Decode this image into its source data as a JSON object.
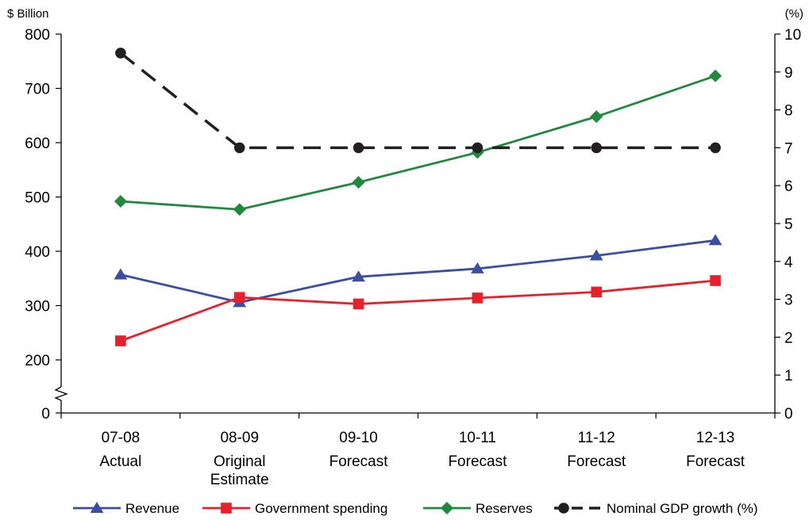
{
  "chart_data": {
    "type": "line",
    "categories": [
      [
        "07-08",
        "Actual"
      ],
      [
        "08-09",
        "Original",
        "Estimate"
      ],
      [
        "09-10",
        "Forecast"
      ],
      [
        "10-11",
        "Forecast"
      ],
      [
        "11-12",
        "Forecast"
      ],
      [
        "12-13",
        "Forecast"
      ]
    ],
    "y_left": {
      "label": "$ Billion",
      "ticks": [
        0,
        200,
        300,
        400,
        500,
        600,
        700,
        800
      ],
      "axis_break": true,
      "break_between": [
        0,
        200
      ]
    },
    "y_right": {
      "label": "(%)",
      "ticks": [
        0,
        1,
        2,
        3,
        4,
        5,
        6,
        7,
        8,
        9,
        10
      ],
      "ylim": [
        0,
        10
      ]
    },
    "series": [
      {
        "name": "Revenue",
        "axis": "left",
        "marker": "triangle",
        "color": "#3a4fa0",
        "dashed": false,
        "values": [
          357,
          306,
          353,
          368,
          392,
          420
        ]
      },
      {
        "name": "Government spending",
        "axis": "left",
        "marker": "square",
        "color": "#e8202a",
        "dashed": false,
        "values": [
          235,
          315,
          303,
          314,
          325,
          346
        ]
      },
      {
        "name": "Reserves",
        "axis": "left",
        "marker": "diamond",
        "color": "#1f8a3c",
        "dashed": false,
        "values": [
          492,
          477,
          527,
          582,
          648,
          723
        ]
      },
      {
        "name": "Nominal GDP growth (%)",
        "axis": "right",
        "marker": "circle",
        "color": "#231f20",
        "dashed": true,
        "values": [
          9.5,
          7.0,
          7.0,
          7.0,
          7.0,
          7.0
        ]
      }
    ],
    "legend_position": "bottom"
  }
}
